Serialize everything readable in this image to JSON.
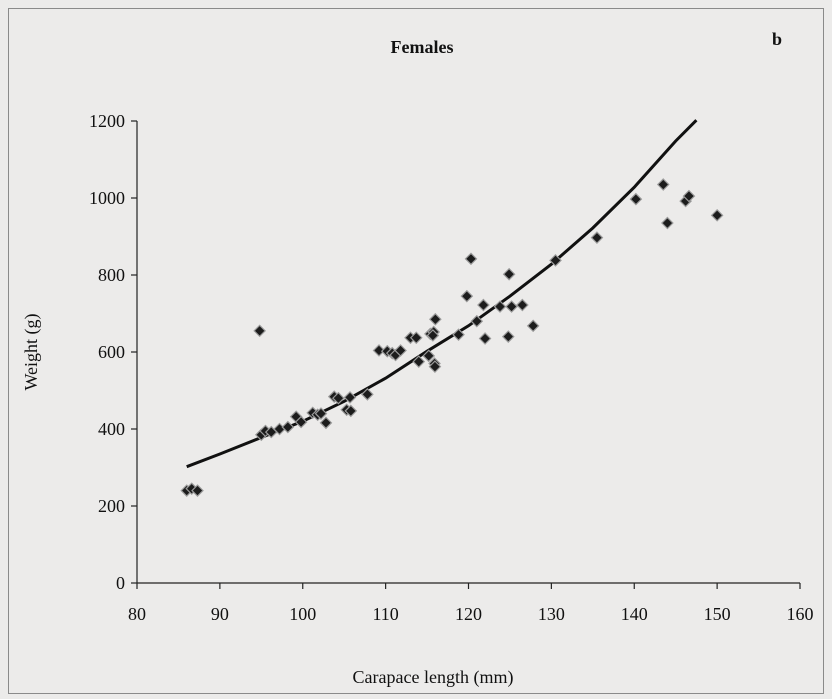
{
  "chart_data": {
    "type": "scatter",
    "title": "Females",
    "panel_label": "b",
    "xlabel": "Carapace length (mm)",
    "ylabel": "Weight (g)",
    "xlim": [
      80,
      160
    ],
    "ylim": [
      0,
      1200
    ],
    "xticks": [
      80,
      90,
      100,
      110,
      120,
      130,
      140,
      150,
      160
    ],
    "yticks": [
      0,
      200,
      400,
      600,
      800,
      1000,
      1200
    ],
    "grid": false,
    "legend": "none",
    "points": [
      [
        86,
        240
      ],
      [
        86.6,
        245
      ],
      [
        87.3,
        240
      ],
      [
        94.8,
        655
      ],
      [
        95,
        385
      ],
      [
        95.5,
        395
      ],
      [
        96.2,
        392
      ],
      [
        97.2,
        400
      ],
      [
        98.2,
        405
      ],
      [
        99.2,
        432
      ],
      [
        99.8,
        418
      ],
      [
        101.2,
        442
      ],
      [
        101.8,
        437
      ],
      [
        102.2,
        440
      ],
      [
        102.8,
        416
      ],
      [
        103.8,
        484
      ],
      [
        104.3,
        480
      ],
      [
        105.3,
        450
      ],
      [
        105.7,
        482
      ],
      [
        105.8,
        447
      ],
      [
        107.8,
        490
      ],
      [
        109.2,
        604
      ],
      [
        110.2,
        602
      ],
      [
        110.8,
        597
      ],
      [
        111.2,
        592
      ],
      [
        111.8,
        604
      ],
      [
        113,
        637
      ],
      [
        113.7,
        637
      ],
      [
        114,
        575
      ],
      [
        115.2,
        590
      ],
      [
        115.4,
        647
      ],
      [
        115.8,
        652
      ],
      [
        115.7,
        643
      ],
      [
        116,
        685
      ],
      [
        115.9,
        570
      ],
      [
        115.95,
        562
      ],
      [
        118.8,
        645
      ],
      [
        119.8,
        745
      ],
      [
        120.3,
        842
      ],
      [
        121,
        680
      ],
      [
        121.8,
        722
      ],
      [
        122,
        635
      ],
      [
        123.8,
        718
      ],
      [
        124.8,
        640
      ],
      [
        124.9,
        802
      ],
      [
        125.2,
        718
      ],
      [
        126.5,
        722
      ],
      [
        127.8,
        668
      ],
      [
        130.5,
        838
      ],
      [
        135.5,
        897
      ],
      [
        140.2,
        997
      ],
      [
        143.5,
        1035
      ],
      [
        144,
        935
      ],
      [
        146.2,
        992
      ],
      [
        146.6,
        1005
      ],
      [
        150,
        955
      ]
    ],
    "fit_curve": {
      "type": "line",
      "x_range": [
        86,
        147.5
      ],
      "samples": [
        [
          86,
          302
        ],
        [
          90,
          335
        ],
        [
          95,
          378
        ],
        [
          100,
          420
        ],
        [
          105,
          472
        ],
        [
          110,
          532
        ],
        [
          115,
          602
        ],
        [
          120,
          668
        ],
        [
          125,
          745
        ],
        [
          130,
          828
        ],
        [
          135,
          922
        ],
        [
          140,
          1028
        ],
        [
          145,
          1148
        ],
        [
          147.5,
          1202
        ]
      ]
    }
  }
}
